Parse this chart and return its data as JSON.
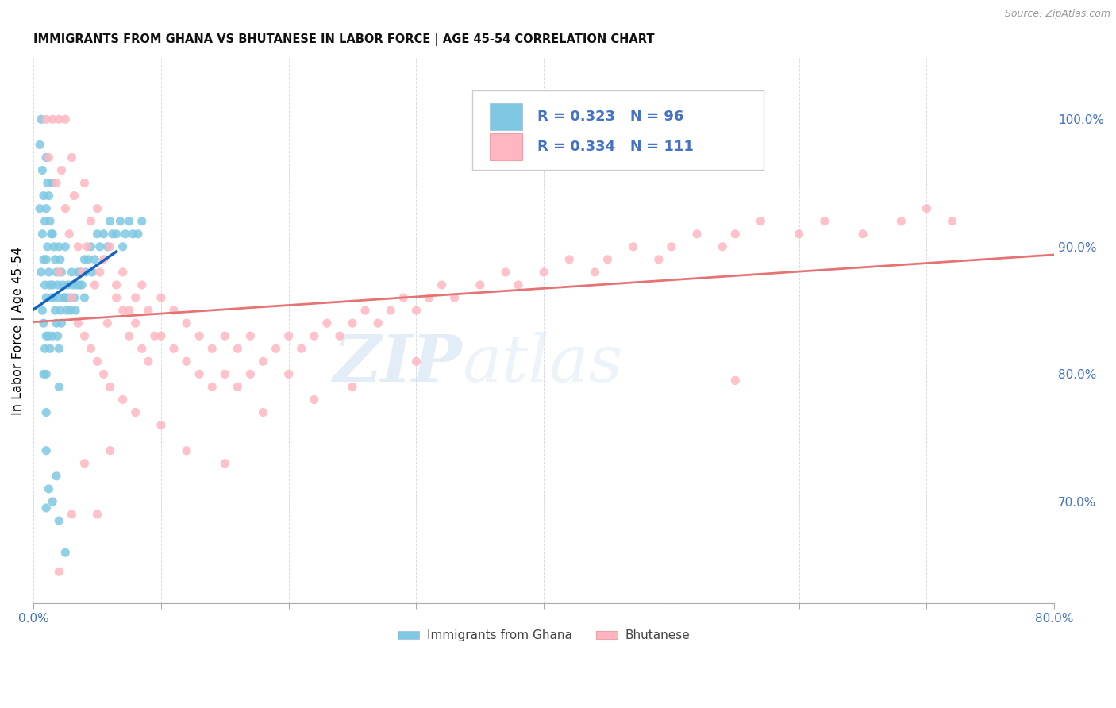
{
  "title": "IMMIGRANTS FROM GHANA VS BHUTANESE IN LABOR FORCE | AGE 45-54 CORRELATION CHART",
  "source": "Source: ZipAtlas.com",
  "ylabel": "In Labor Force | Age 45-54",
  "xlim": [
    0.0,
    0.8
  ],
  "ylim": [
    0.62,
    1.048
  ],
  "right_yticks": [
    0.7,
    0.8,
    0.9,
    1.0
  ],
  "right_yticklabels": [
    "70.0%",
    "80.0%",
    "90.0%",
    "100.0%"
  ],
  "xticks": [
    0.0,
    0.1,
    0.2,
    0.3,
    0.4,
    0.5,
    0.6,
    0.7,
    0.8
  ],
  "ghana_color": "#7ec8e3",
  "bhutanese_color": "#ffb6c1",
  "ghana_line_color": "#1565c0",
  "bhutanese_line_color": "#e57373",
  "ghana_R": 0.323,
  "ghana_N": 96,
  "bhutanese_R": 0.334,
  "bhutanese_N": 111,
  "legend_label_ghana": "Immigrants from Ghana",
  "legend_label_bhutanese": "Bhutanese",
  "watermark": "ZIPatlas",
  "tick_color": "#4472c4",
  "grid_color": "#d5dce8",
  "ghana_x": [
    0.005,
    0.005,
    0.006,
    0.006,
    0.007,
    0.007,
    0.007,
    0.008,
    0.008,
    0.008,
    0.008,
    0.009,
    0.009,
    0.009,
    0.01,
    0.01,
    0.01,
    0.01,
    0.01,
    0.01,
    0.01,
    0.01,
    0.011,
    0.011,
    0.012,
    0.012,
    0.012,
    0.013,
    0.013,
    0.013,
    0.014,
    0.014,
    0.015,
    0.015,
    0.015,
    0.015,
    0.016,
    0.016,
    0.017,
    0.017,
    0.018,
    0.018,
    0.019,
    0.019,
    0.02,
    0.02,
    0.02,
    0.02,
    0.021,
    0.021,
    0.022,
    0.022,
    0.023,
    0.024,
    0.025,
    0.025,
    0.026,
    0.027,
    0.028,
    0.029,
    0.03,
    0.031,
    0.032,
    0.033,
    0.034,
    0.035,
    0.036,
    0.037,
    0.038,
    0.04,
    0.04,
    0.041,
    0.043,
    0.045,
    0.046,
    0.048,
    0.05,
    0.052,
    0.055,
    0.058,
    0.06,
    0.062,
    0.065,
    0.068,
    0.07,
    0.072,
    0.075,
    0.078,
    0.082,
    0.085,
    0.01,
    0.012,
    0.015,
    0.018,
    0.02,
    0.025
  ],
  "ghana_y": [
    0.98,
    0.93,
    1.0,
    0.88,
    0.96,
    0.91,
    0.85,
    0.94,
    0.89,
    0.84,
    0.8,
    0.92,
    0.87,
    0.82,
    0.97,
    0.93,
    0.89,
    0.86,
    0.83,
    0.8,
    0.77,
    0.74,
    0.95,
    0.9,
    0.94,
    0.88,
    0.83,
    0.92,
    0.87,
    0.82,
    0.91,
    0.86,
    0.95,
    0.91,
    0.87,
    0.83,
    0.9,
    0.86,
    0.89,
    0.85,
    0.88,
    0.84,
    0.87,
    0.83,
    0.9,
    0.86,
    0.82,
    0.79,
    0.89,
    0.85,
    0.88,
    0.84,
    0.87,
    0.86,
    0.9,
    0.86,
    0.85,
    0.87,
    0.86,
    0.85,
    0.88,
    0.87,
    0.86,
    0.85,
    0.87,
    0.88,
    0.87,
    0.88,
    0.87,
    0.89,
    0.86,
    0.88,
    0.89,
    0.9,
    0.88,
    0.89,
    0.91,
    0.9,
    0.91,
    0.9,
    0.92,
    0.91,
    0.91,
    0.92,
    0.9,
    0.91,
    0.92,
    0.91,
    0.91,
    0.92,
    0.695,
    0.71,
    0.7,
    0.72,
    0.685,
    0.66
  ],
  "bhutanese_x": [
    0.01,
    0.012,
    0.015,
    0.018,
    0.02,
    0.02,
    0.022,
    0.025,
    0.025,
    0.028,
    0.03,
    0.03,
    0.032,
    0.035,
    0.035,
    0.038,
    0.04,
    0.04,
    0.042,
    0.045,
    0.045,
    0.048,
    0.05,
    0.05,
    0.052,
    0.055,
    0.055,
    0.058,
    0.06,
    0.06,
    0.065,
    0.065,
    0.07,
    0.07,
    0.075,
    0.075,
    0.08,
    0.08,
    0.085,
    0.085,
    0.09,
    0.09,
    0.095,
    0.1,
    0.1,
    0.11,
    0.11,
    0.12,
    0.12,
    0.13,
    0.13,
    0.14,
    0.14,
    0.15,
    0.15,
    0.16,
    0.16,
    0.17,
    0.17,
    0.18,
    0.19,
    0.2,
    0.2,
    0.21,
    0.22,
    0.23,
    0.24,
    0.25,
    0.26,
    0.27,
    0.28,
    0.29,
    0.3,
    0.31,
    0.32,
    0.33,
    0.35,
    0.37,
    0.38,
    0.4,
    0.42,
    0.44,
    0.45,
    0.47,
    0.49,
    0.5,
    0.52,
    0.54,
    0.55,
    0.57,
    0.6,
    0.62,
    0.65,
    0.68,
    0.7,
    0.72,
    0.02,
    0.03,
    0.04,
    0.05,
    0.06,
    0.07,
    0.08,
    0.1,
    0.12,
    0.15,
    0.18,
    0.22,
    0.25,
    0.3,
    0.55
  ],
  "bhutanese_y": [
    1.0,
    0.97,
    1.0,
    0.95,
    1.0,
    0.88,
    0.96,
    1.0,
    0.93,
    0.91,
    0.97,
    0.86,
    0.94,
    0.9,
    0.84,
    0.88,
    0.95,
    0.83,
    0.9,
    0.92,
    0.82,
    0.87,
    0.93,
    0.81,
    0.88,
    0.89,
    0.8,
    0.84,
    0.9,
    0.79,
    0.87,
    0.86,
    0.88,
    0.85,
    0.85,
    0.83,
    0.86,
    0.84,
    0.87,
    0.82,
    0.85,
    0.81,
    0.83,
    0.86,
    0.83,
    0.85,
    0.82,
    0.84,
    0.81,
    0.83,
    0.8,
    0.82,
    0.79,
    0.83,
    0.8,
    0.82,
    0.79,
    0.83,
    0.8,
    0.81,
    0.82,
    0.83,
    0.8,
    0.82,
    0.83,
    0.84,
    0.83,
    0.84,
    0.85,
    0.84,
    0.85,
    0.86,
    0.85,
    0.86,
    0.87,
    0.86,
    0.87,
    0.88,
    0.87,
    0.88,
    0.89,
    0.88,
    0.89,
    0.9,
    0.89,
    0.9,
    0.91,
    0.9,
    0.91,
    0.92,
    0.91,
    0.92,
    0.91,
    0.92,
    0.93,
    0.92,
    0.645,
    0.69,
    0.73,
    0.69,
    0.74,
    0.78,
    0.77,
    0.76,
    0.74,
    0.73,
    0.77,
    0.78,
    0.79,
    0.81,
    0.795
  ]
}
